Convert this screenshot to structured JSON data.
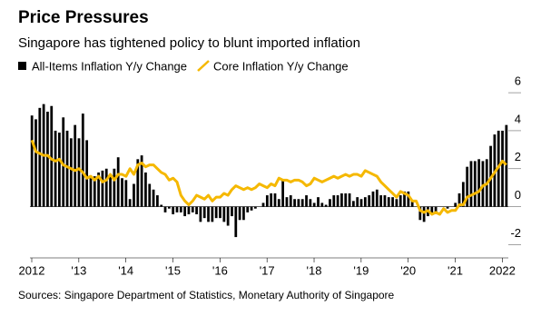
{
  "chart_data": {
    "type": "bar-line",
    "title": "Price Pressures",
    "subtitle": "Singapore has tightened policy to blunt imported inflation",
    "source": "Sources: Singapore Department of Statistics, Monetary Authority of Singapore",
    "categories": [
      "2012",
      null,
      null,
      null,
      null,
      null,
      null,
      null,
      null,
      null,
      null,
      null,
      "'13",
      null,
      null,
      null,
      null,
      null,
      null,
      null,
      null,
      null,
      null,
      null,
      "'14",
      null,
      null,
      null,
      null,
      null,
      null,
      null,
      null,
      null,
      null,
      null,
      "'15",
      null,
      null,
      null,
      null,
      null,
      null,
      null,
      null,
      null,
      null,
      null,
      "'16",
      null,
      null,
      null,
      null,
      null,
      null,
      null,
      null,
      null,
      null,
      null,
      "'17",
      null,
      null,
      null,
      null,
      null,
      null,
      null,
      null,
      null,
      null,
      null,
      "'18",
      null,
      null,
      null,
      null,
      null,
      null,
      null,
      null,
      null,
      null,
      null,
      "'19",
      null,
      null,
      null,
      null,
      null,
      null,
      null,
      null,
      null,
      null,
      null,
      "'20",
      null,
      null,
      null,
      null,
      null,
      null,
      null,
      null,
      null,
      null,
      null,
      "'21",
      null,
      null,
      null,
      null,
      null,
      null,
      null,
      null,
      null,
      null,
      null,
      "2022",
      null
    ],
    "series": [
      {
        "name": "All-Items Inflation Y/y Change",
        "color": "#000000",
        "kind": "bar",
        "values": [
          4.8,
          4.6,
          5.2,
          5.4,
          5.0,
          5.3,
          4.0,
          3.9,
          4.7,
          4.0,
          3.6,
          4.3,
          3.6,
          4.9,
          3.5,
          1.5,
          1.6,
          1.8,
          1.9,
          2.0,
          1.6,
          2.0,
          2.6,
          1.5,
          1.4,
          0.4,
          1.2,
          2.5,
          2.7,
          1.8,
          1.2,
          0.9,
          0.6,
          0.1,
          -0.3,
          -0.1,
          -0.4,
          -0.3,
          -0.3,
          -0.5,
          -0.4,
          -0.3,
          -0.4,
          -0.8,
          -0.6,
          -0.8,
          -0.8,
          -0.6,
          -0.6,
          -0.8,
          -1.0,
          -0.5,
          -1.6,
          -0.7,
          -0.7,
          -0.3,
          -0.2,
          -0.1,
          0.0,
          0.2,
          0.6,
          0.7,
          0.7,
          0.4,
          1.4,
          0.5,
          0.6,
          0.4,
          0.4,
          0.4,
          0.6,
          0.4,
          0.2,
          0.5,
          0.2,
          0.1,
          0.4,
          0.6,
          0.6,
          0.7,
          0.7,
          0.7,
          0.3,
          0.5,
          0.4,
          0.5,
          0.6,
          0.8,
          0.9,
          0.6,
          0.6,
          0.5,
          0.5,
          0.4,
          0.6,
          0.8,
          0.8,
          0.3,
          0.0,
          -0.7,
          -0.8,
          -0.5,
          -0.4,
          -0.4,
          0.0,
          0.0,
          -0.1,
          0.0,
          0.2,
          0.7,
          1.3,
          2.1,
          2.4,
          2.4,
          2.5,
          2.4,
          2.5,
          3.2,
          3.8,
          4.0,
          4.0,
          4.3
        ]
      },
      {
        "name": "Core Inflation Y/y Change",
        "color": "#f5b800",
        "kind": "line",
        "values": [
          3.5,
          2.9,
          2.8,
          2.7,
          2.7,
          2.5,
          2.4,
          2.5,
          2.2,
          2.1,
          2.0,
          1.9,
          2.0,
          1.8,
          1.5,
          1.6,
          1.4,
          1.6,
          1.3,
          1.4,
          1.7,
          1.4,
          1.7,
          1.7,
          1.6,
          2.0,
          1.7,
          2.2,
          2.3,
          2.1,
          2.2,
          2.2,
          2.0,
          1.8,
          1.7,
          1.4,
          1.5,
          1.3,
          0.6,
          0.3,
          0.1,
          0.3,
          0.6,
          0.5,
          0.4,
          0.6,
          0.3,
          0.5,
          0.5,
          0.7,
          0.6,
          0.9,
          1.1,
          1.0,
          0.9,
          1.0,
          0.9,
          1.0,
          1.2,
          1.1,
          1.0,
          1.2,
          1.1,
          1.5,
          1.4,
          1.4,
          1.3,
          1.4,
          1.4,
          1.3,
          1.1,
          1.2,
          1.5,
          1.4,
          1.3,
          1.4,
          1.5,
          1.6,
          1.5,
          1.6,
          1.7,
          1.6,
          1.7,
          1.7,
          1.6,
          1.9,
          1.8,
          1.7,
          1.6,
          1.3,
          1.1,
          0.9,
          0.7,
          0.5,
          0.8,
          0.7,
          0.6,
          0.3,
          0.3,
          -0.2,
          -0.3,
          -0.2,
          -0.4,
          -0.3,
          -0.4,
          -0.1,
          -0.3,
          -0.2,
          -0.2,
          0.1,
          0.1,
          0.5,
          0.6,
          0.7,
          0.8,
          1.1,
          1.2,
          1.5,
          1.8,
          2.1,
          2.4,
          2.2
        ]
      }
    ],
    "ylim": [
      -2.6,
      6.1
    ],
    "yticks": [
      -2,
      0,
      2,
      4,
      6
    ]
  }
}
